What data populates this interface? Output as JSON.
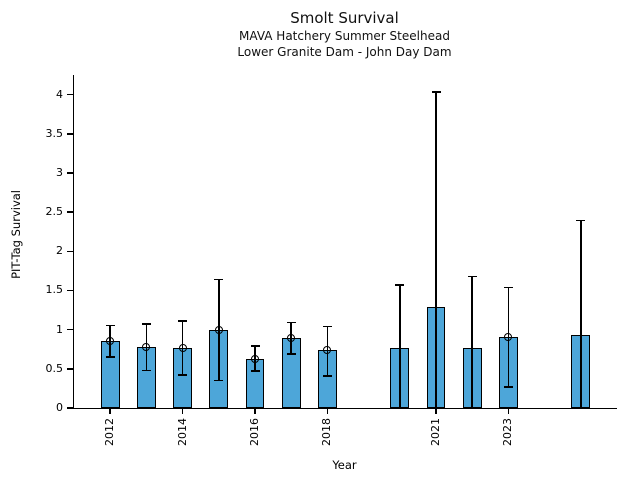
{
  "page": {
    "background": "#ffffff"
  },
  "chart_data": {
    "type": "bar",
    "title": "Smolt Survival",
    "subtitle1": "MAVA Hatchery Summer Steelhead",
    "subtitle2": "Lower Granite Dam - John Day Dam",
    "xlabel": "Year",
    "ylabel": "PIT-Tag Survival",
    "xlim": [
      2011,
      2026
    ],
    "ylim": [
      0,
      4.25
    ],
    "x_ticks": [
      2012,
      2014,
      2016,
      2018,
      2021,
      2023
    ],
    "y_ticks": [
      0,
      0.5,
      1,
      1.5,
      2,
      2.5,
      3,
      3.5,
      4
    ],
    "grid": false,
    "legend": null,
    "bar_color": "#4DA6D9",
    "bar_edge_color": "#000000",
    "bar_width_years": 0.52,
    "series": [
      {
        "year": 2012,
        "value": 0.85,
        "err_low": 0.65,
        "err_high": 1.05,
        "marker": true
      },
      {
        "year": 2013,
        "value": 0.78,
        "err_low": 0.48,
        "err_high": 1.07,
        "marker": true
      },
      {
        "year": 2014,
        "value": 0.76,
        "err_low": 0.42,
        "err_high": 1.11,
        "marker": true
      },
      {
        "year": 2015,
        "value": 0.99,
        "err_low": 0.35,
        "err_high": 1.64,
        "marker": true
      },
      {
        "year": 2016,
        "value": 0.63,
        "err_low": 0.47,
        "err_high": 0.79,
        "marker": true
      },
      {
        "year": 2017,
        "value": 0.89,
        "err_low": 0.69,
        "err_high": 1.09,
        "marker": true
      },
      {
        "year": 2018,
        "value": 0.74,
        "err_low": 0.41,
        "err_high": 1.04,
        "marker": true
      },
      {
        "year": 2020,
        "value": 0.77,
        "err_low": 0.0,
        "err_high": 1.57,
        "marker": false
      },
      {
        "year": 2021,
        "value": 1.29,
        "err_low": 0.0,
        "err_high": 4.03,
        "marker": false
      },
      {
        "year": 2022,
        "value": 0.76,
        "err_low": 0.0,
        "err_high": 1.68,
        "marker": false
      },
      {
        "year": 2023,
        "value": 0.9,
        "err_low": 0.27,
        "err_high": 1.54,
        "marker": true
      },
      {
        "year": 2025,
        "value": 0.93,
        "err_low": 0.0,
        "err_high": 2.39,
        "marker": false
      }
    ]
  }
}
